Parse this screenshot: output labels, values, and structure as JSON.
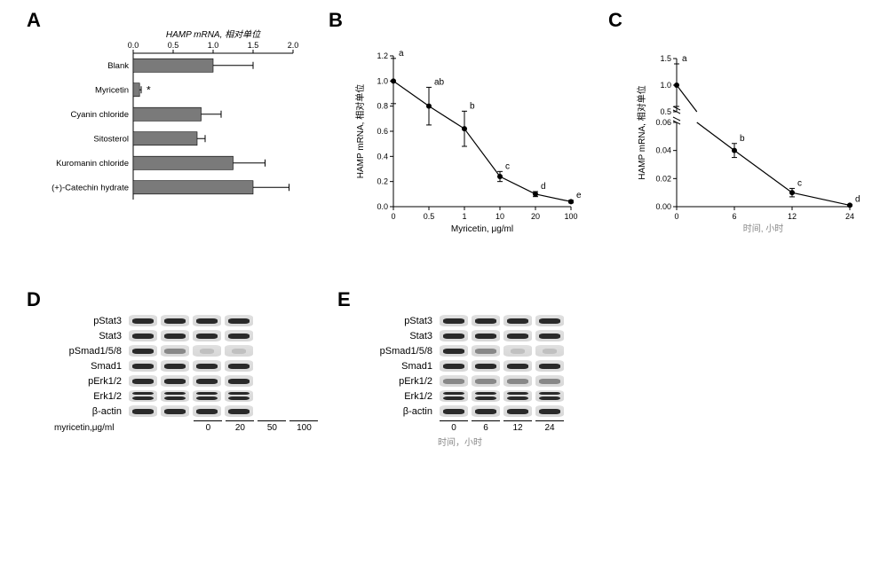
{
  "panels": {
    "A": "A",
    "B": "B",
    "C": "C",
    "D": "D",
    "E": "E"
  },
  "panelA": {
    "xlabel": "HAMP mRNA, 相对单位",
    "xticks": [
      0.0,
      0.5,
      1.0,
      1.5,
      2.0
    ],
    "categories": [
      "Blank",
      "Myricetin",
      "Cyanin chloride",
      "Sitosterol",
      "Kuromanin chloride",
      "(+)-Catechin hydrate"
    ],
    "values": [
      1.0,
      0.08,
      0.85,
      0.8,
      1.25,
      1.5
    ],
    "errors": [
      0.5,
      0.02,
      0.25,
      0.1,
      0.4,
      0.45
    ],
    "star_idx": 1,
    "bar_color": "#7a7a7a",
    "bar_edge": "#000000",
    "err_color": "#000000",
    "bg": "#ffffff"
  },
  "panelB": {
    "xlabel": "Myricetin, μg/ml",
    "ylabel": "HAMP mRNA, 相对单位",
    "xvals": [
      0,
      0.5,
      1,
      10,
      20,
      100
    ],
    "yvals": [
      1.0,
      0.8,
      0.62,
      0.24,
      0.1,
      0.04
    ],
    "yerr": [
      0.18,
      0.15,
      0.14,
      0.04,
      0.02,
      0.01
    ],
    "letters": [
      "a",
      "ab",
      "b",
      "c",
      "d",
      "e"
    ],
    "yticks": [
      0.0,
      0.2,
      0.4,
      0.6,
      0.8,
      1.0,
      1.2
    ],
    "line_color": "#000000",
    "marker": "circle",
    "marker_size": 3
  },
  "panelC": {
    "xlabel": "时间, 小时",
    "ylabel": "HAMP mRNA, 相对单位",
    "xvals": [
      0,
      6,
      12,
      24
    ],
    "yvals": [
      1.0,
      0.04,
      0.01,
      0.001
    ],
    "yerr": [
      0.4,
      0.005,
      0.003,
      0.0005
    ],
    "letters": [
      "a",
      "b",
      "c",
      "d"
    ],
    "upper_ticks": [
      0.5,
      1.0,
      1.5
    ],
    "lower_ticks": [
      0.0,
      0.02,
      0.04,
      0.06
    ],
    "break": true,
    "line_color": "#000000"
  },
  "panelD": {
    "proteins": [
      "pStat3",
      "Stat3",
      "pSmad1/5/8",
      "Smad1",
      "pErk1/2",
      "Erk1/2",
      "β-actin"
    ],
    "condition_label": "myricetin,μg/ml",
    "lanes": [
      "0",
      "20",
      "50",
      "100"
    ],
    "intensity": {
      "pStat3": [
        "norm",
        "norm",
        "norm",
        "norm"
      ],
      "Stat3": [
        "norm",
        "norm",
        "norm",
        "norm"
      ],
      "pSmad1/5/8": [
        "norm",
        "faint",
        "vfaint",
        "vfaint"
      ],
      "Smad1": [
        "norm",
        "norm",
        "norm",
        "norm"
      ],
      "pErk1/2": [
        "norm",
        "norm",
        "norm",
        "norm"
      ],
      "Erk1/2": [
        "double",
        "double",
        "double",
        "double"
      ],
      "β-actin": [
        "norm",
        "norm",
        "norm",
        "norm"
      ]
    }
  },
  "panelE": {
    "proteins": [
      "pStat3",
      "Stat3",
      "pSmad1/5/8",
      "Smad1",
      "pErk1/2",
      "Erk1/2",
      "β-actin"
    ],
    "condition_label": "时间，小时",
    "lanes": [
      "0",
      "6",
      "12",
      "24"
    ],
    "intensity": {
      "pStat3": [
        "norm",
        "norm",
        "norm",
        "norm"
      ],
      "Stat3": [
        "norm",
        "norm",
        "norm",
        "norm"
      ],
      "pSmad1/5/8": [
        "norm",
        "faint",
        "vfaint",
        "vfaint"
      ],
      "Smad1": [
        "norm",
        "norm",
        "norm",
        "norm"
      ],
      "pErk1/2": [
        "faint",
        "faint",
        "faint",
        "faint"
      ],
      "Erk1/2": [
        "double",
        "double",
        "double",
        "double"
      ],
      "β-actin": [
        "norm",
        "norm",
        "norm",
        "norm"
      ]
    }
  }
}
